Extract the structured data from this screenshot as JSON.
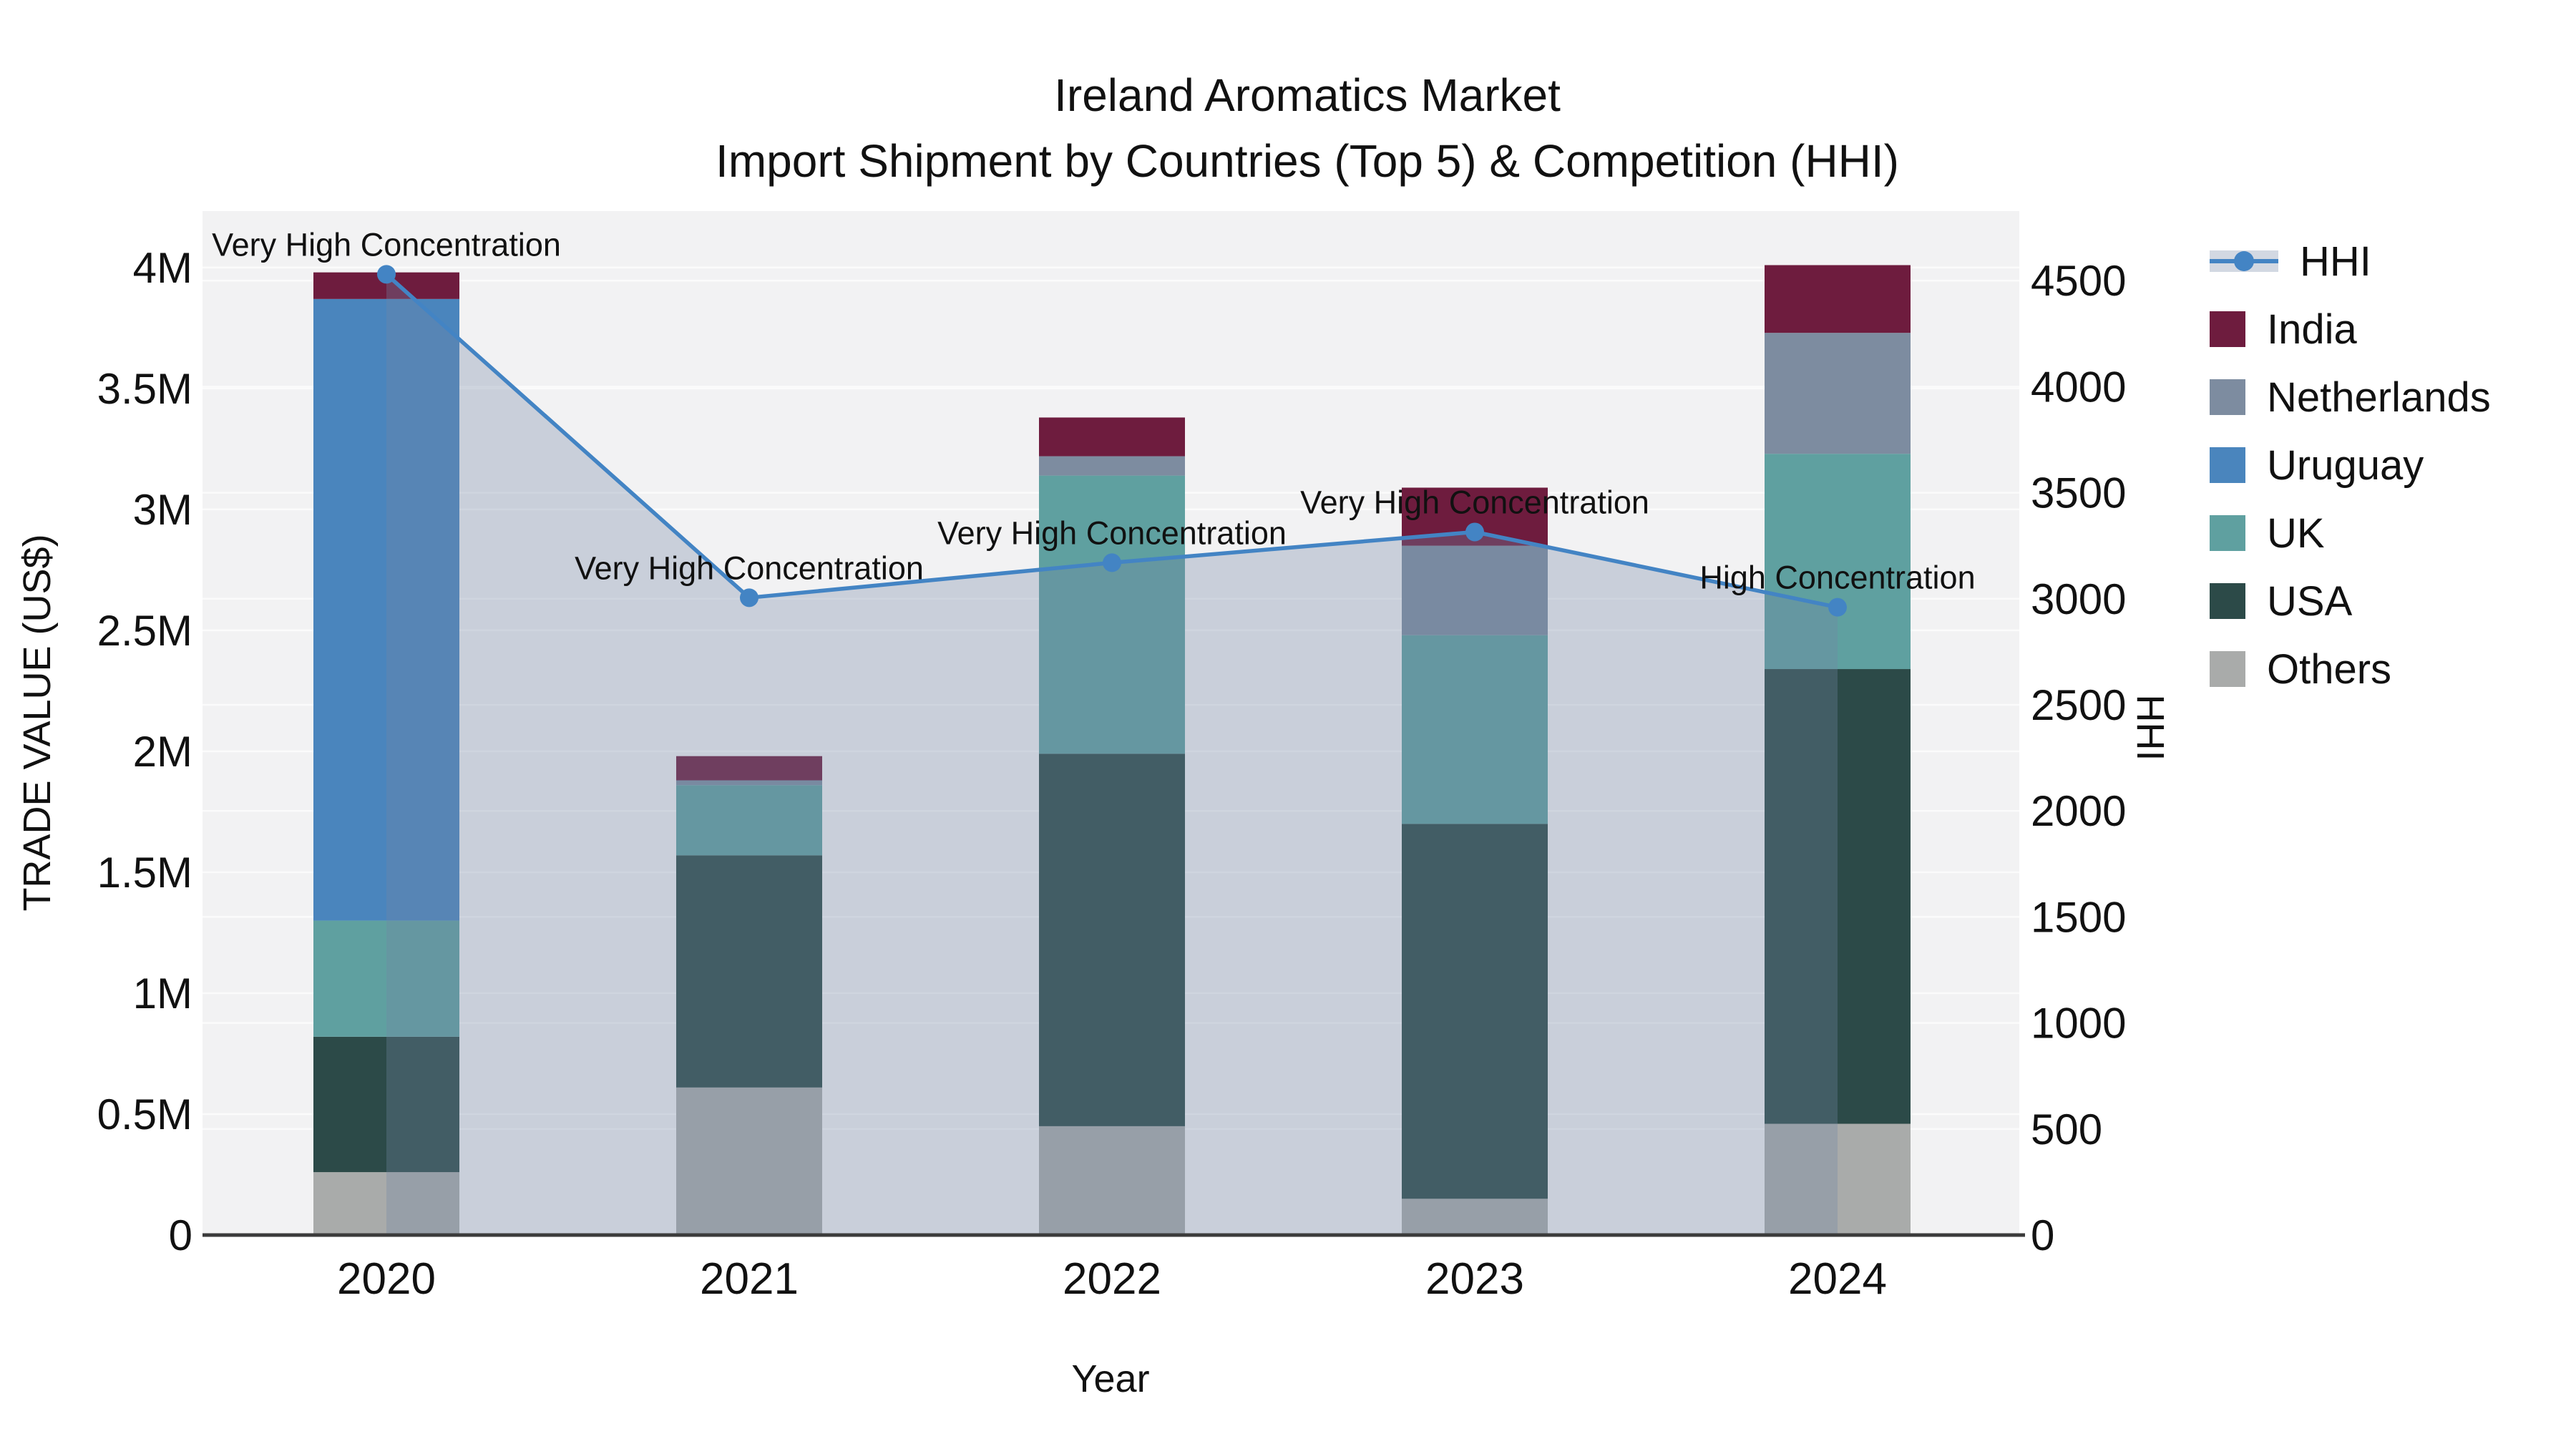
{
  "chart_data": {
    "type": "bar+line",
    "title": {
      "line1": "Ireland Aromatics Market",
      "line2": "Import Shipment by Countries (Top 5) & Competition (HHI)"
    },
    "xlabel": "Year",
    "ylabel_left": "TRADE VALUE (US$)",
    "ylabel_right": "HHI",
    "categories": [
      "2020",
      "2021",
      "2022",
      "2023",
      "2024"
    ],
    "bar_unit": "million US$",
    "series": [
      {
        "name": "Others",
        "color": "#a9abaa",
        "values": [
          0.26,
          0.61,
          0.45,
          0.15,
          0.46
        ]
      },
      {
        "name": "USA",
        "color": "#2c4a48",
        "values": [
          0.56,
          0.96,
          1.54,
          1.55,
          1.88
        ]
      },
      {
        "name": "UK",
        "color": "#5fa0a0",
        "values": [
          0.48,
          0.29,
          1.15,
          0.78,
          0.89
        ]
      },
      {
        "name": "Uruguay",
        "color": "#4a85bd",
        "values": [
          2.57,
          0.0,
          0.0,
          0.0,
          0.0
        ]
      },
      {
        "name": "Netherlands",
        "color": "#7d8ca0",
        "values": [
          0.0,
          0.02,
          0.08,
          0.37,
          0.5
        ]
      },
      {
        "name": "India",
        "color": "#6e1c3e",
        "values": [
          0.11,
          0.1,
          0.16,
          0.24,
          0.28
        ]
      }
    ],
    "bar_totals": [
      3.98,
      1.98,
      3.38,
      3.09,
      4.01
    ],
    "hhi": {
      "name": "HHI",
      "line_color": "#4384c4",
      "area_fill": "rgba(115,133,165,0.32)",
      "values": [
        4530,
        3005,
        3170,
        3315,
        2960
      ],
      "annotations": [
        "Very High Concentration",
        "Very High Concentration",
        "Very High Concentration",
        "Very High Concentration",
        "High Concentration"
      ]
    },
    "y_left": {
      "range": [
        0,
        4.2334
      ],
      "tick_values": [
        0,
        0.5,
        1,
        1.5,
        2,
        2.5,
        3,
        3.5,
        4
      ],
      "tick_labels": [
        "0",
        "0.5M",
        "1M",
        "1.5M",
        "2M",
        "2.5M",
        "3M",
        "3.5M",
        "4M"
      ]
    },
    "y_right": {
      "range": [
        0,
        4828
      ],
      "tick_values": [
        0,
        500,
        1000,
        1500,
        2000,
        2500,
        3000,
        3500,
        4000,
        4500
      ],
      "tick_labels": [
        "0",
        "500",
        "1000",
        "1500",
        "2000",
        "2500",
        "3000",
        "3500",
        "4000",
        "4500"
      ]
    },
    "legend": [
      {
        "label": "HHI",
        "swatch": "line",
        "color": "#4384c4",
        "band": "rgba(115,133,165,0.32)"
      },
      {
        "label": "India",
        "swatch": "square",
        "color": "#6e1c3e"
      },
      {
        "label": "Netherlands",
        "swatch": "square",
        "color": "#7d8ca0"
      },
      {
        "label": "Uruguay",
        "swatch": "square",
        "color": "#4a85bd"
      },
      {
        "label": "UK",
        "swatch": "square",
        "color": "#5fa0a0"
      },
      {
        "label": "USA",
        "swatch": "square",
        "color": "#2c4a48"
      },
      {
        "label": "Others",
        "swatch": "square",
        "color": "#a9abaa"
      }
    ],
    "style": {
      "plot_bg": "#f2f2f3",
      "grid_color": "#fbfbfb",
      "axis_line_color": "#3b3b3b",
      "text_color": "#111111"
    }
  }
}
